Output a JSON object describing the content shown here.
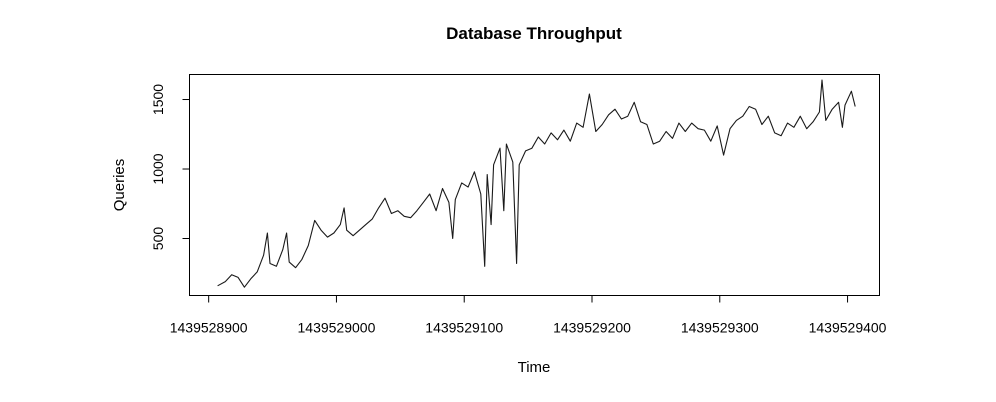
{
  "chart_data": {
    "type": "line",
    "title": "Database Throughput",
    "xlabel": "Time",
    "ylabel": "Queries",
    "xlim": [
      1439528885,
      1439529425
    ],
    "ylim": [
      90,
      1680
    ],
    "x_ticks": [
      1439528900,
      1439529000,
      1439529100,
      1439529200,
      1439529300,
      1439529400
    ],
    "x_tick_labels": [
      "1439528900",
      "1439529000",
      "1439529100",
      "1439529200",
      "1439529300",
      "1439529400"
    ],
    "y_ticks": [
      500,
      1000,
      1500
    ],
    "y_tick_labels": [
      "500",
      "1000",
      "1500"
    ],
    "grid": false,
    "legend": false,
    "series": [
      {
        "x": [
          1439528907,
          1439528913,
          1439528918,
          1439528923,
          1439528928,
          1439528933,
          1439528938,
          1439528943,
          1439528946,
          1439528948,
          1439528953,
          1439528958,
          1439528961,
          1439528963,
          1439528968,
          1439528973,
          1439528978,
          1439528983,
          1439528988,
          1439528993,
          1439528998,
          1439529003,
          1439529006,
          1439529008,
          1439529013,
          1439529018,
          1439529023,
          1439529028,
          1439529033,
          1439529038,
          1439529043,
          1439529048,
          1439529053,
          1439529058,
          1439529063,
          1439529068,
          1439529073,
          1439529078,
          1439529083,
          1439529088,
          1439529091,
          1439529093,
          1439529098,
          1439529103,
          1439529108,
          1439529113,
          1439529116,
          1439529118,
          1439529121,
          1439529123,
          1439529128,
          1439529131,
          1439529133,
          1439529138,
          1439529141,
          1439529143,
          1439529148,
          1439529153,
          1439529158,
          1439529163,
          1439529168,
          1439529173,
          1439529178,
          1439529183,
          1439529188,
          1439529193,
          1439529198,
          1439529203,
          1439529208,
          1439529213,
          1439529218,
          1439529223,
          1439529228,
          1439529233,
          1439529238,
          1439529243,
          1439529248,
          1439529253,
          1439529258,
          1439529263,
          1439529268,
          1439529273,
          1439529278,
          1439529283,
          1439529288,
          1439529293,
          1439529298,
          1439529303,
          1439529308,
          1439529313,
          1439529318,
          1439529323,
          1439529328,
          1439529333,
          1439529338,
          1439529343,
          1439529348,
          1439529353,
          1439529358,
          1439529363,
          1439529368,
          1439529373,
          1439529378,
          1439529380,
          1439529383,
          1439529388,
          1439529393,
          1439529396,
          1439529398,
          1439529403,
          1439529406
        ],
        "values": [
          160,
          190,
          240,
          220,
          150,
          210,
          260,
          380,
          540,
          320,
          300,
          420,
          540,
          330,
          290,
          350,
          450,
          630,
          560,
          510,
          540,
          600,
          720,
          560,
          520,
          560,
          600,
          640,
          720,
          790,
          680,
          700,
          660,
          650,
          700,
          760,
          820,
          700,
          860,
          760,
          500,
          780,
          900,
          870,
          980,
          820,
          300,
          960,
          600,
          1030,
          1150,
          700,
          1180,
          1050,
          320,
          1030,
          1130,
          1150,
          1230,
          1180,
          1260,
          1210,
          1280,
          1200,
          1330,
          1300,
          1540,
          1270,
          1320,
          1390,
          1430,
          1360,
          1380,
          1480,
          1340,
          1320,
          1180,
          1200,
          1270,
          1220,
          1330,
          1270,
          1330,
          1290,
          1280,
          1200,
          1310,
          1100,
          1290,
          1350,
          1380,
          1450,
          1430,
          1320,
          1380,
          1260,
          1240,
          1330,
          1300,
          1380,
          1290,
          1340,
          1410,
          1640,
          1350,
          1430,
          1480,
          1300,
          1460,
          1560,
          1450
        ]
      }
    ]
  }
}
